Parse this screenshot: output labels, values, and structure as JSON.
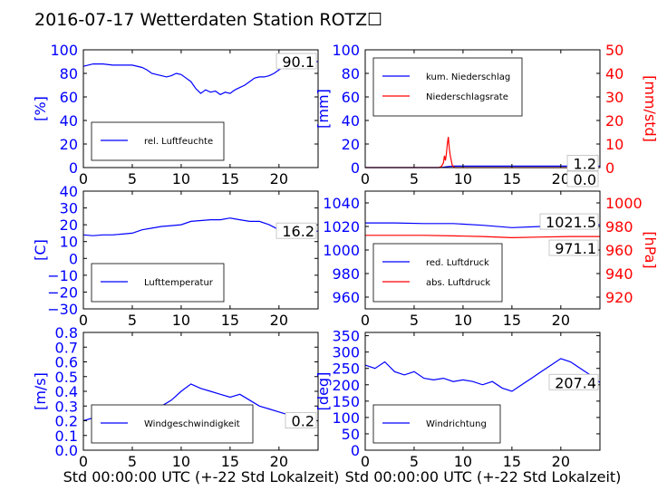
{
  "title": "2016-07-17 Wetterdaten Station ROTZ☐",
  "xlabel": "Std 00:00:00 UTC (+-22 Std Lokalzeit)",
  "colors": {
    "blue": "#0000ff",
    "red": "#ff0000",
    "black": "#000000"
  },
  "chart_data": [
    {
      "type": "line",
      "ylabel": "[%]",
      "xlim": [
        0,
        24
      ],
      "ylim": [
        0,
        100
      ],
      "xticks": [
        "0",
        "5",
        "10",
        "15",
        "20"
      ],
      "yticks": [
        "0",
        "20",
        "40",
        "60",
        "80",
        "100"
      ],
      "current_label": "90.1",
      "series": [
        {
          "name": "rel. Luftfeuchte",
          "color": "blue",
          "x": [
            0,
            1,
            2,
            3,
            4,
            5,
            6,
            6.5,
            7,
            7.5,
            8,
            8.5,
            9,
            9.5,
            10,
            10.5,
            11,
            11.5,
            12,
            12.5,
            13,
            13.5,
            14,
            14.5,
            15,
            15.5,
            16,
            16.5,
            17,
            17.5,
            18,
            18.5,
            19,
            19.5,
            20,
            20.5,
            21,
            21.5,
            22,
            23,
            24
          ],
          "y": [
            86,
            88,
            88,
            87,
            87,
            87,
            85,
            83,
            80,
            79,
            78,
            77,
            78,
            80,
            79,
            76,
            73,
            67,
            63,
            66,
            64,
            65,
            62,
            64,
            63,
            66,
            68,
            70,
            73,
            76,
            77,
            77,
            78,
            80,
            83,
            86,
            88,
            90,
            90,
            90,
            90
          ]
        }
      ]
    },
    {
      "type": "line",
      "ylabel": "[mm]",
      "ylabel_right": "[mm/std]",
      "xlim": [
        0,
        24
      ],
      "ylim": [
        0,
        100
      ],
      "ylim_right": [
        0,
        50
      ],
      "xticks": [
        "0",
        "5",
        "10",
        "15",
        "20"
      ],
      "yticks": [
        "0",
        "20",
        "40",
        "60",
        "80",
        "100"
      ],
      "yticks_right": [
        "0",
        "10",
        "20",
        "30",
        "40",
        "50"
      ],
      "current_labels": [
        "1.2",
        "0.0"
      ],
      "series": [
        {
          "name": "kum. Niederschlag",
          "color": "blue",
          "axis": "left",
          "x": [
            0,
            7.5,
            8,
            8.2,
            8.4,
            8.6,
            8.8,
            9,
            10,
            24
          ],
          "y": [
            0,
            0,
            0.3,
            0.6,
            0.8,
            1.0,
            1.1,
            1.2,
            1.2,
            1.2
          ]
        },
        {
          "name": "Niederschlagsrate",
          "color": "red",
          "axis": "right",
          "x": [
            0,
            7.5,
            7.8,
            8,
            8.1,
            8.2,
            8.3,
            8.4,
            8.5,
            8.6,
            8.7,
            8.8,
            8.9,
            9,
            9.2,
            24
          ],
          "y": [
            0,
            0,
            0.5,
            2,
            5,
            3,
            6,
            10,
            13,
            8,
            5,
            3,
            1,
            0.5,
            0,
            0
          ]
        }
      ]
    },
    {
      "type": "line",
      "ylabel": "[C]",
      "xlim": [
        0,
        24
      ],
      "ylim": [
        -30,
        40
      ],
      "xticks": [
        "0",
        "5",
        "10",
        "15",
        "20"
      ],
      "yticks": [
        "−30",
        "−20",
        "−10",
        "0",
        "10",
        "20",
        "30",
        "40"
      ],
      "current_label": "16.2",
      "series": [
        {
          "name": "Lufttemperatur",
          "color": "blue",
          "x": [
            0,
            1,
            2,
            3,
            4,
            5,
            6,
            7,
            8,
            9,
            10,
            11,
            12,
            13,
            14,
            15,
            16,
            17,
            18,
            19,
            20,
            21,
            22,
            23,
            24
          ],
          "y": [
            14,
            13.5,
            14,
            14,
            14.5,
            15,
            17,
            18,
            19,
            19.5,
            20,
            22,
            22.5,
            23,
            23,
            24,
            23,
            22,
            22,
            20,
            17,
            16,
            16.2,
            16.2,
            16.2
          ]
        }
      ]
    },
    {
      "type": "line",
      "ylabel": "",
      "ylabel_right": "[hPa]",
      "xlim": [
        0,
        24
      ],
      "ylim": [
        950,
        1050
      ],
      "ylim_right": [
        910,
        1010
      ],
      "xticks": [
        "0",
        "5",
        "10",
        "15",
        "20"
      ],
      "yticks": [
        "960",
        "980",
        "1000",
        "1020",
        "1040"
      ],
      "yticks_right": [
        "920",
        "940",
        "960",
        "980",
        "1000"
      ],
      "current_labels": [
        "1021.5",
        "971.1"
      ],
      "series": [
        {
          "name": "red. Luftdruck",
          "color": "blue",
          "axis": "left",
          "x": [
            0,
            3,
            6,
            9,
            12,
            15,
            18,
            21,
            24
          ],
          "y": [
            1023,
            1023,
            1022.5,
            1022.5,
            1021,
            1019,
            1020,
            1021.5,
            1021.5
          ]
        },
        {
          "name": "abs. Luftdruck",
          "color": "red",
          "axis": "left",
          "x": [
            0,
            3,
            6,
            9,
            12,
            15,
            18,
            21,
            24
          ],
          "y": [
            1012.5,
            1012.5,
            1012.5,
            1012,
            1011.5,
            1010.5,
            1011,
            1011.5,
            1011.5
          ]
        }
      ]
    },
    {
      "type": "line",
      "ylabel": "[m/s]",
      "xlim": [
        0,
        24
      ],
      "ylim": [
        0,
        0.8
      ],
      "xticks": [
        "0",
        "5",
        "10",
        "15",
        "20"
      ],
      "yticks": [
        "0.0",
        "0.1",
        "0.2",
        "0.3",
        "0.4",
        "0.5",
        "0.6",
        "0.7",
        "0.8"
      ],
      "current_label": "0.2",
      "series": [
        {
          "name": "Windgeschwindigkeit",
          "color": "blue",
          "x": [
            0,
            1,
            2,
            3,
            4,
            5,
            6,
            7,
            8,
            9,
            10,
            11,
            12,
            13,
            14,
            15,
            16,
            17,
            18,
            19,
            20,
            21,
            22,
            23,
            24
          ],
          "y": [
            0.2,
            0.22,
            0.18,
            0.2,
            0.18,
            0.22,
            0.24,
            0.28,
            0.3,
            0.34,
            0.4,
            0.45,
            0.42,
            0.4,
            0.38,
            0.36,
            0.38,
            0.34,
            0.3,
            0.28,
            0.26,
            0.24,
            0.2,
            0.2,
            0.2
          ]
        }
      ]
    },
    {
      "type": "line",
      "ylabel": "[deg]",
      "xlim": [
        0,
        24
      ],
      "ylim": [
        0,
        360
      ],
      "xticks": [
        "0",
        "5",
        "10",
        "15",
        "20"
      ],
      "yticks": [
        "0",
        "50",
        "100",
        "150",
        "200",
        "250",
        "300",
        "350"
      ],
      "current_label": "207.4",
      "series": [
        {
          "name": "Windrichtung",
          "color": "blue",
          "x": [
            0,
            1,
            2,
            3,
            4,
            5,
            6,
            7,
            8,
            9,
            10,
            11,
            12,
            13,
            14,
            15,
            16,
            17,
            18,
            19,
            20,
            21,
            22,
            23,
            24
          ],
          "y": [
            260,
            250,
            270,
            240,
            230,
            240,
            220,
            215,
            220,
            210,
            215,
            210,
            200,
            210,
            190,
            180,
            200,
            220,
            240,
            260,
            280,
            270,
            250,
            230,
            207
          ]
        }
      ]
    }
  ]
}
